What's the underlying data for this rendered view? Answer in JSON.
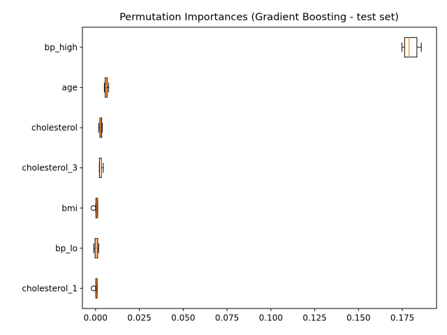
{
  "chart_data": {
    "type": "boxplot",
    "orientation": "horizontal",
    "title": "Permutation Importances (Gradient Boosting - test set)",
    "xlabel": "",
    "ylabel": "",
    "xlim": [
      -0.0075,
      0.1945
    ],
    "xticks": [
      {
        "value": 0.0,
        "label": "0.000"
      },
      {
        "value": 0.025,
        "label": "0.025"
      },
      {
        "value": 0.05,
        "label": "0.050"
      },
      {
        "value": 0.075,
        "label": "0.075"
      },
      {
        "value": 0.1,
        "label": "0.100"
      },
      {
        "value": 0.125,
        "label": "0.125"
      },
      {
        "value": 0.15,
        "label": "0.150"
      },
      {
        "value": 0.175,
        "label": "0.175"
      }
    ],
    "grid": false,
    "features": [
      {
        "name": "bp_high",
        "whislo": 0.1748,
        "q1": 0.1763,
        "med": 0.1788,
        "q3": 0.1833,
        "whishi": 0.1858,
        "fliers": []
      },
      {
        "name": "age",
        "whislo": 0.005,
        "q1": 0.0055,
        "med": 0.0062,
        "q3": 0.0066,
        "whishi": 0.0075,
        "fliers": []
      },
      {
        "name": "cholesterol",
        "whislo": 0.0018,
        "q1": 0.0025,
        "med": 0.0029,
        "q3": 0.0035,
        "whishi": 0.0038,
        "fliers": []
      },
      {
        "name": "cholesterol_3",
        "whislo": 0.0022,
        "q1": 0.0022,
        "med": 0.0032,
        "q3": 0.0034,
        "whishi": 0.0044,
        "fliers": []
      },
      {
        "name": "bmi",
        "whislo": 0.0002,
        "q1": 0.0002,
        "med": 0.0007,
        "q3": 0.0012,
        "whishi": 0.0012,
        "fliers": [
          -0.0012
        ]
      },
      {
        "name": "bp_lo",
        "whislo": -0.001,
        "q1": -0.0003,
        "med": 0.0004,
        "q3": 0.0012,
        "whishi": 0.0018,
        "fliers": []
      },
      {
        "name": "cholesterol_1",
        "whislo": 0.0001,
        "q1": 0.0001,
        "med": 0.0004,
        "q3": 0.0009,
        "whishi": 0.0009,
        "fliers": [
          -0.0011
        ]
      }
    ],
    "colors": {
      "box": "#000000",
      "median": "#ff7f0e",
      "whisker": "#000000",
      "flier": "#000000"
    }
  }
}
